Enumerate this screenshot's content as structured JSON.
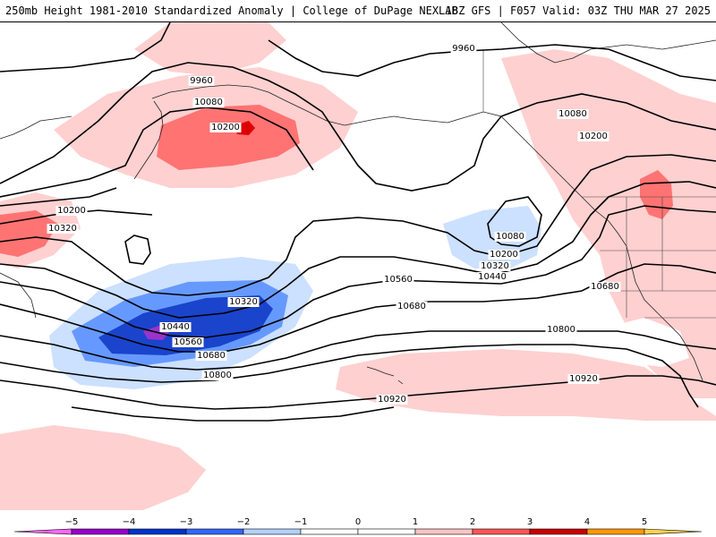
{
  "header": {
    "title_left": "250mb Height 1981-2010 Standardized Anomaly | College of DuPage NEXLAB",
    "title_right": "18Z GFS | F057 Valid: 03Z THU MAR 27 2025"
  },
  "contour_labels": [
    {
      "id": "c9960a",
      "text": "9960"
    },
    {
      "id": "c9960b",
      "text": "9960"
    },
    {
      "id": "c10080a",
      "text": "10080"
    },
    {
      "id": "c10080b",
      "text": "10080"
    },
    {
      "id": "c10080c",
      "text": "10080"
    },
    {
      "id": "c10200a",
      "text": "10200"
    },
    {
      "id": "c10200b",
      "text": "10200"
    },
    {
      "id": "c10200c",
      "text": "10200"
    },
    {
      "id": "c10200d",
      "text": "10200"
    },
    {
      "id": "c10320a",
      "text": "10320"
    },
    {
      "id": "c10320b",
      "text": "10320"
    },
    {
      "id": "c10320c",
      "text": "10320"
    },
    {
      "id": "c10440a",
      "text": "10440"
    },
    {
      "id": "c10440b",
      "text": "10440"
    },
    {
      "id": "c10560a",
      "text": "10560"
    },
    {
      "id": "c10560b",
      "text": "10560"
    },
    {
      "id": "c10680a",
      "text": "10680"
    },
    {
      "id": "c10680b",
      "text": "10680"
    },
    {
      "id": "c10680c",
      "text": "10680"
    },
    {
      "id": "c10800a",
      "text": "10800"
    },
    {
      "id": "c10800b",
      "text": "10800"
    },
    {
      "id": "c10920a",
      "text": "10920"
    },
    {
      "id": "c10920b",
      "text": "10920"
    }
  ],
  "legend": {
    "ticks": [
      "−5",
      "−4",
      "−3",
      "−2",
      "−1",
      "0",
      "1",
      "2",
      "3",
      "4",
      "5"
    ],
    "colors": [
      "#ff66ff",
      "#9900cc",
      "#0033cc",
      "#3366ff",
      "#b3d1ff",
      "#ffffff",
      "#ffffff",
      "#ffc4c4",
      "#ff5555",
      "#cc0000",
      "#ff9900",
      "#ffd24d"
    ]
  },
  "anomaly_colors": {
    "pos1": "#ffd0d0",
    "pos2": "#ff7373",
    "pos3": "#dd0000",
    "neg1": "#cce0ff",
    "neg2": "#6699ff",
    "neg3": "#1a44cc",
    "neg4": "#9933cc"
  }
}
